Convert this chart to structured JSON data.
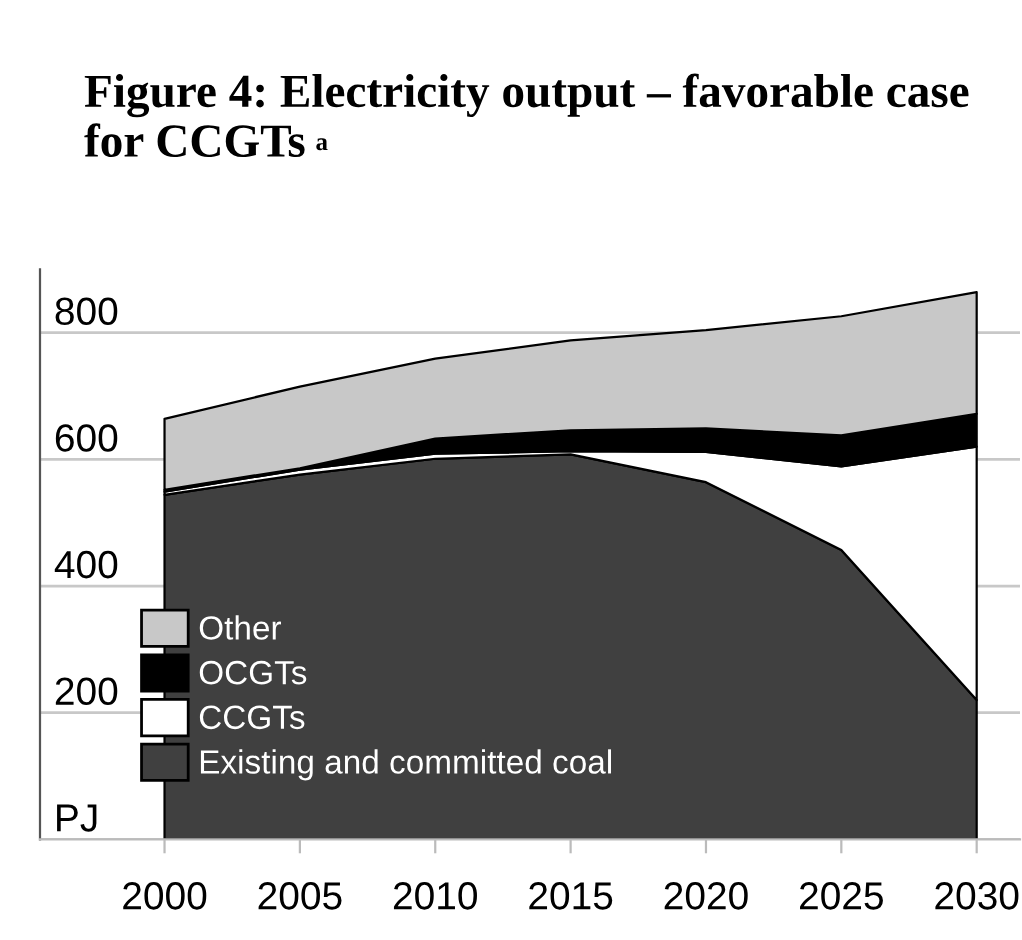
{
  "chart_data": {
    "type": "area",
    "stacked": true,
    "title": "Figure 4: Electricity output – favorable case for CCGTs",
    "annotations": [
      "a"
    ],
    "x": [
      2000,
      2005,
      2010,
      2015,
      2020,
      2025,
      2030
    ],
    "series": [
      {
        "name": "Existing and committed coal",
        "color": "#404040",
        "values": [
          544,
          576,
          601,
          608,
          564,
          457,
          220
        ]
      },
      {
        "name": "CCGTs",
        "color": "#ffffff",
        "values": [
          5,
          8,
          8,
          5,
          48,
          132,
          400
        ]
      },
      {
        "name": "OCGTs",
        "color": "#000000",
        "values": [
          3,
          2,
          24,
          33,
          37,
          49,
          52
        ]
      },
      {
        "name": "Other",
        "color": "#c8c8c8",
        "values": [
          112,
          129,
          126,
          142,
          155,
          188,
          192
        ]
      }
    ],
    "xlim": [
      1995.4,
      2031.6
    ],
    "xticks": [
      2000,
      2005,
      2010,
      2015,
      2020,
      2025,
      2030
    ],
    "ylim": [
      0,
      900
    ],
    "yticks": [
      {
        "value": 0,
        "label": "PJ"
      },
      200,
      400,
      600,
      800
    ],
    "grid": "y",
    "legend": "lower left"
  }
}
